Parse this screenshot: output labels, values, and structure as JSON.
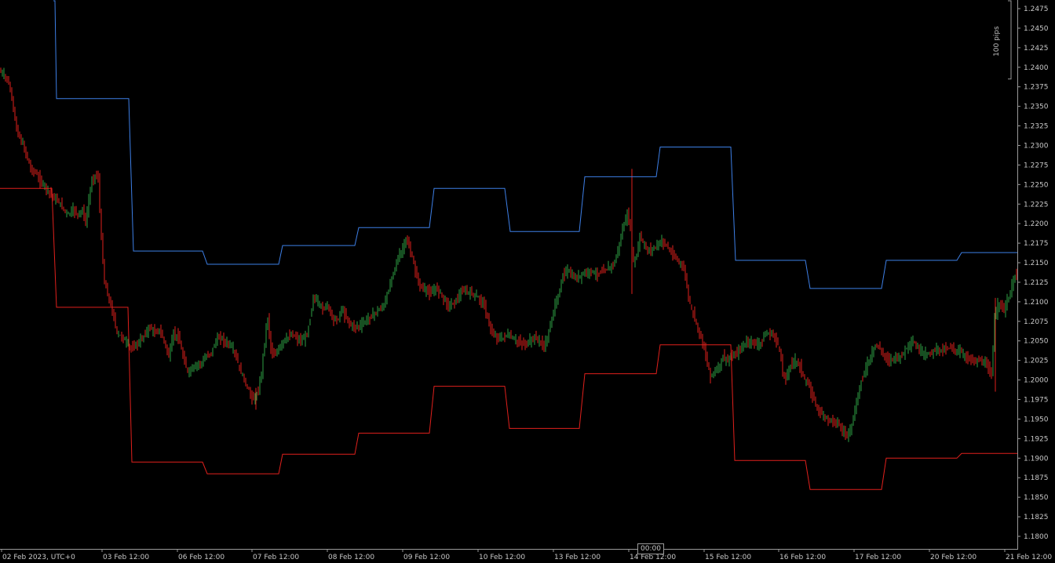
{
  "chart_data": {
    "type": "candlestick",
    "title": "",
    "xlabel": "",
    "ylabel": "",
    "ylim": [
      1.1775,
      1.2485
    ],
    "grid": false,
    "colors": {
      "background": "#000000",
      "bull": "#2ea043",
      "bear": "#e0201c",
      "upper_band": "#3d7fe6",
      "lower_band": "#e0201c",
      "axis": "#9a9a9a",
      "text": "#c8c8c8"
    },
    "x_ticks": [
      "02 Feb 2023, UTC+0",
      "03 Feb 12:00",
      "06 Feb 12:00",
      "07 Feb 12:00",
      "08 Feb 12:00",
      "09 Feb 12:00",
      "10 Feb 12:00",
      "13 Feb 12:00",
      "14 Feb 12:00",
      "15 Feb 12:00",
      "16 Feb 12:00",
      "17 Feb 12:00",
      "20 Feb 12:00",
      "21 Feb 12:00"
    ],
    "y_ticks": [
      "1.2475",
      "1.2450",
      "1.2425",
      "1.2400",
      "1.2375",
      "1.2350",
      "1.2325",
      "1.2300",
      "1.2275",
      "1.2250",
      "1.2225",
      "1.2200",
      "1.2175",
      "1.2150",
      "1.2125",
      "1.2100",
      "1.2075",
      "1.2050",
      "1.2025",
      "1.2000",
      "1.1975",
      "1.1950",
      "1.1925",
      "1.1900",
      "1.1875",
      "1.1850",
      "1.1825",
      "1.1800"
    ],
    "scale_bar": "100 pips",
    "time_cursor": "00:00",
    "close_path": [
      [
        0,
        1.2395
      ],
      [
        4,
        1.2392
      ],
      [
        10,
        1.2385
      ],
      [
        16,
        1.2362
      ],
      [
        22,
        1.232
      ],
      [
        28,
        1.2305
      ],
      [
        34,
        1.229
      ],
      [
        40,
        1.227
      ],
      [
        46,
        1.2265
      ],
      [
        52,
        1.2255
      ],
      [
        58,
        1.2248
      ],
      [
        64,
        1.224
      ],
      [
        70,
        1.2232
      ],
      [
        76,
        1.2228
      ],
      [
        82,
        1.2218
      ],
      [
        88,
        1.2212
      ],
      [
        94,
        1.2218
      ],
      [
        100,
        1.2212
      ],
      [
        106,
        1.2218
      ],
      [
        110,
        1.22
      ],
      [
        114,
        1.223
      ],
      [
        118,
        1.2255
      ],
      [
        122,
        1.2262
      ],
      [
        126,
        1.2258
      ],
      [
        130,
        1.218
      ],
      [
        134,
        1.2125
      ],
      [
        138,
        1.211
      ],
      [
        142,
        1.2095
      ],
      [
        146,
        1.208
      ],
      [
        150,
        1.206
      ],
      [
        156,
        1.2055
      ],
      [
        162,
        1.2048
      ],
      [
        168,
        1.204
      ],
      [
        174,
        1.2045
      ],
      [
        180,
        1.205
      ],
      [
        186,
        1.206
      ],
      [
        192,
        1.2068
      ],
      [
        198,
        1.206
      ],
      [
        204,
        1.2064
      ],
      [
        210,
        1.205
      ],
      [
        216,
        1.203
      ],
      [
        222,
        1.206
      ],
      [
        228,
        1.2055
      ],
      [
        234,
        1.203
      ],
      [
        240,
        1.201
      ],
      [
        246,
        1.2015
      ],
      [
        252,
        1.202
      ],
      [
        258,
        1.2022
      ],
      [
        264,
        1.203
      ],
      [
        270,
        1.2035
      ],
      [
        276,
        1.205
      ],
      [
        282,
        1.2055
      ],
      [
        288,
        1.2048
      ],
      [
        294,
        1.2045
      ],
      [
        300,
        1.2035
      ],
      [
        306,
        1.2015
      ],
      [
        312,
        1.2
      ],
      [
        318,
        1.1985
      ],
      [
        324,
        1.1975
      ],
      [
        330,
        1.1985
      ],
      [
        334,
        1.201
      ],
      [
        338,
        1.205
      ],
      [
        342,
        1.208
      ],
      [
        346,
        1.204
      ],
      [
        350,
        1.203
      ],
      [
        356,
        1.204
      ],
      [
        362,
        1.205
      ],
      [
        368,
        1.2055
      ],
      [
        374,
        1.2058
      ],
      [
        380,
        1.2052
      ],
      [
        386,
        1.205
      ],
      [
        392,
        1.2058
      ],
      [
        396,
        1.208
      ],
      [
        400,
        1.2105
      ],
      [
        406,
        1.21
      ],
      [
        412,
        1.209
      ],
      [
        418,
        1.2098
      ],
      [
        424,
        1.208
      ],
      [
        430,
        1.2075
      ],
      [
        436,
        1.209
      ],
      [
        442,
        1.208
      ],
      [
        448,
        1.207
      ],
      [
        454,
        1.2068
      ],
      [
        460,
        1.207
      ],
      [
        466,
        1.2075
      ],
      [
        472,
        1.208
      ],
      [
        478,
        1.2085
      ],
      [
        484,
        1.209
      ],
      [
        490,
        1.2095
      ],
      [
        496,
        1.2115
      ],
      [
        502,
        1.214
      ],
      [
        508,
        1.2155
      ],
      [
        514,
        1.2168
      ],
      [
        518,
        1.218
      ],
      [
        522,
        1.217
      ],
      [
        526,
        1.2155
      ],
      [
        530,
        1.214
      ],
      [
        534,
        1.2125
      ],
      [
        538,
        1.2118
      ],
      [
        544,
        1.2115
      ],
      [
        550,
        1.211
      ],
      [
        556,
        1.2118
      ],
      [
        562,
        1.2112
      ],
      [
        568,
        1.21
      ],
      [
        574,
        1.2095
      ],
      [
        580,
        1.21
      ],
      [
        586,
        1.2108
      ],
      [
        592,
        1.2115
      ],
      [
        598,
        1.2112
      ],
      [
        604,
        1.211
      ],
      [
        610,
        1.2105
      ],
      [
        616,
        1.21
      ],
      [
        622,
        1.208
      ],
      [
        628,
        1.2058
      ],
      [
        634,
        1.2055
      ],
      [
        640,
        1.2052
      ],
      [
        646,
        1.2058
      ],
      [
        652,
        1.2055
      ],
      [
        658,
        1.205
      ],
      [
        664,
        1.2048
      ],
      [
        670,
        1.2045
      ],
      [
        676,
        1.205
      ],
      [
        682,
        1.2055
      ],
      [
        688,
        1.205
      ],
      [
        694,
        1.2042
      ],
      [
        700,
        1.206
      ],
      [
        706,
        1.209
      ],
      [
        710,
        1.21
      ],
      [
        714,
        1.2115
      ],
      [
        718,
        1.2135
      ],
      [
        724,
        1.214
      ],
      [
        730,
        1.2132
      ],
      [
        736,
        1.213
      ],
      [
        742,
        1.2135
      ],
      [
        748,
        1.2138
      ],
      [
        754,
        1.214
      ],
      [
        760,
        1.2135
      ],
      [
        766,
        1.2138
      ],
      [
        772,
        1.214
      ],
      [
        778,
        1.2145
      ],
      [
        784,
        1.215
      ],
      [
        790,
        1.2175
      ],
      [
        796,
        1.22
      ],
      [
        800,
        1.2212
      ],
      [
        804,
        1.219
      ],
      [
        808,
        1.215
      ],
      [
        812,
        1.216
      ],
      [
        816,
        1.2185
      ],
      [
        820,
        1.2175
      ],
      [
        826,
        1.2165
      ],
      [
        832,
        1.2168
      ],
      [
        838,
        1.2172
      ],
      [
        844,
        1.2178
      ],
      [
        850,
        1.2172
      ],
      [
        856,
        1.2162
      ],
      [
        862,
        1.2155
      ],
      [
        868,
        1.215
      ],
      [
        874,
        1.2135
      ],
      [
        878,
        1.2105
      ],
      [
        882,
        1.209
      ],
      [
        886,
        1.208
      ],
      [
        890,
        1.2065
      ],
      [
        894,
        1.2055
      ],
      [
        898,
        1.204
      ],
      [
        902,
        1.202
      ],
      [
        906,
        1.2005
      ],
      [
        910,
        1.201
      ],
      [
        916,
        1.2015
      ],
      [
        922,
        1.203
      ],
      [
        928,
        1.2025
      ],
      [
        934,
        1.203
      ],
      [
        940,
        1.2035
      ],
      [
        946,
        1.2042
      ],
      [
        952,
        1.2048
      ],
      [
        958,
        1.205
      ],
      [
        964,
        1.2045
      ],
      [
        970,
        1.2048
      ],
      [
        976,
        1.2058
      ],
      [
        982,
        1.206
      ],
      [
        988,
        1.2055
      ],
      [
        994,
        1.204
      ],
      [
        998,
        1.201
      ],
      [
        1002,
        1.2
      ],
      [
        1008,
        1.202
      ],
      [
        1014,
        1.2025
      ],
      [
        1020,
        1.2018
      ],
      [
        1026,
        1.2
      ],
      [
        1032,
        1.199
      ],
      [
        1038,
        1.1975
      ],
      [
        1044,
        1.196
      ],
      [
        1050,
        1.1955
      ],
      [
        1056,
        1.195
      ],
      [
        1062,
        1.1948
      ],
      [
        1068,
        1.1945
      ],
      [
        1074,
        1.1935
      ],
      [
        1080,
        1.193
      ],
      [
        1086,
        1.1942
      ],
      [
        1090,
        1.196
      ],
      [
        1094,
        1.198
      ],
      [
        1098,
        1.2
      ],
      [
        1104,
        1.2015
      ],
      [
        1110,
        1.203
      ],
      [
        1116,
        1.2045
      ],
      [
        1122,
        1.204
      ],
      [
        1128,
        1.203
      ],
      [
        1134,
        1.2025
      ],
      [
        1140,
        1.203
      ],
      [
        1146,
        1.2028
      ],
      [
        1152,
        1.2035
      ],
      [
        1158,
        1.2045
      ],
      [
        1164,
        1.2048
      ],
      [
        1170,
        1.204
      ],
      [
        1176,
        1.2035
      ],
      [
        1182,
        1.2032
      ],
      [
        1188,
        1.2036
      ],
      [
        1194,
        1.204
      ],
      [
        1200,
        1.2038
      ],
      [
        1206,
        1.204
      ],
      [
        1212,
        1.2042
      ],
      [
        1218,
        1.2038
      ],
      [
        1224,
        1.2036
      ],
      [
        1230,
        1.203
      ],
      [
        1236,
        1.2028
      ],
      [
        1242,
        1.2024
      ],
      [
        1248,
        1.2025
      ],
      [
        1254,
        1.2022
      ],
      [
        1260,
        1.2015
      ],
      [
        1264,
        1.2005
      ],
      [
        1268,
        1.208
      ],
      [
        1272,
        1.2095
      ],
      [
        1276,
        1.21
      ],
      [
        1280,
        1.2088
      ],
      [
        1284,
        1.21
      ],
      [
        1288,
        1.211
      ],
      [
        1292,
        1.213
      ],
      [
        1296,
        1.2135
      ]
    ],
    "upper_band": [
      [
        68,
        1.2485
      ],
      [
        70,
        1.2485
      ],
      [
        72,
        1.236
      ],
      [
        164,
        1.236
      ],
      [
        170,
        1.2165
      ],
      [
        258,
        1.2165
      ],
      [
        264,
        1.2148
      ],
      [
        355,
        1.2148
      ],
      [
        360,
        1.2172
      ],
      [
        452,
        1.2172
      ],
      [
        457,
        1.2195
      ],
      [
        547,
        1.2195
      ],
      [
        553,
        1.2245
      ],
      [
        643,
        1.2245
      ],
      [
        650,
        1.219
      ],
      [
        738,
        1.219
      ],
      [
        745,
        1.226
      ],
      [
        836,
        1.226
      ],
      [
        841,
        1.2298
      ],
      [
        931,
        1.2298
      ],
      [
        937,
        1.2153
      ],
      [
        1026,
        1.2153
      ],
      [
        1032,
        1.2117
      ],
      [
        1123,
        1.2117
      ],
      [
        1129,
        1.2153
      ],
      [
        1219,
        1.2153
      ],
      [
        1225,
        1.2163
      ],
      [
        1296,
        1.2163
      ]
    ],
    "lower_band": [
      [
        0,
        1.2245
      ],
      [
        66,
        1.2245
      ],
      [
        72,
        1.2093
      ],
      [
        163,
        1.2093
      ],
      [
        168,
        1.1895
      ],
      [
        258,
        1.1895
      ],
      [
        264,
        1.188
      ],
      [
        355,
        1.188
      ],
      [
        360,
        1.1905
      ],
      [
        452,
        1.1905
      ],
      [
        457,
        1.1932
      ],
      [
        547,
        1.1932
      ],
      [
        553,
        1.1992
      ],
      [
        643,
        1.1992
      ],
      [
        649,
        1.1938
      ],
      [
        738,
        1.1938
      ],
      [
        745,
        1.2008
      ],
      [
        836,
        1.2008
      ],
      [
        841,
        1.2045
      ],
      [
        931,
        1.2045
      ],
      [
        936,
        1.1897
      ],
      [
        1026,
        1.1897
      ],
      [
        1032,
        1.186
      ],
      [
        1123,
        1.186
      ],
      [
        1129,
        1.19
      ],
      [
        1219,
        1.19
      ],
      [
        1225,
        1.1906
      ],
      [
        1296,
        1.1906
      ]
    ]
  }
}
